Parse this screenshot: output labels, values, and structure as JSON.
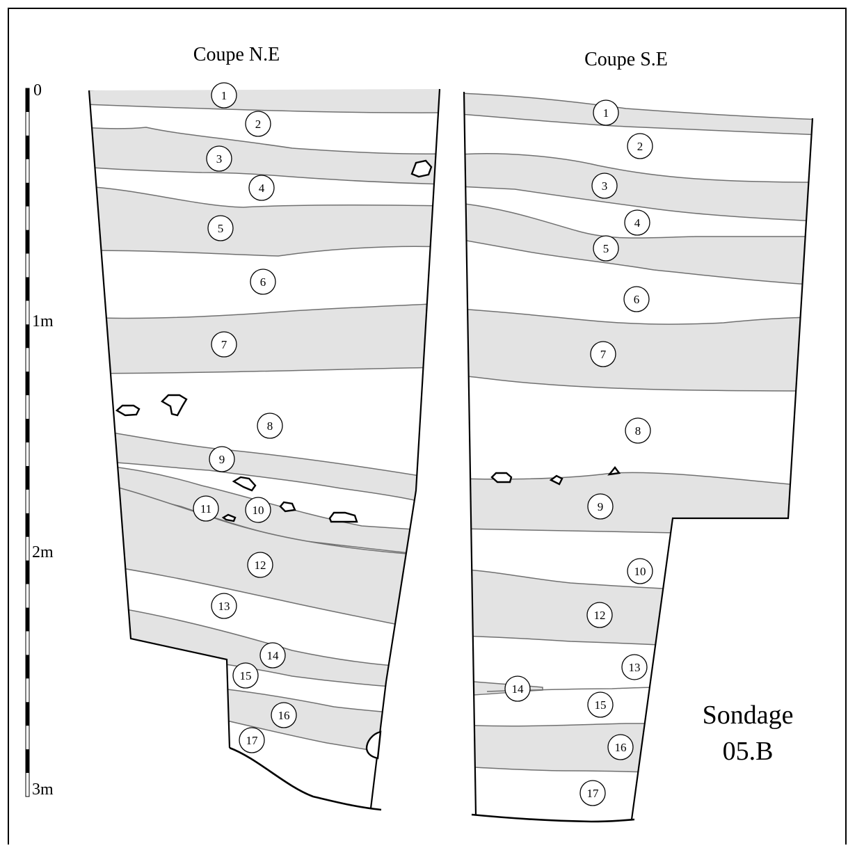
{
  "sections": [
    {
      "title": "Coupe N.E",
      "layers": [
        "1",
        "2",
        "3",
        "4",
        "5",
        "6",
        "7",
        "8",
        "9",
        "10",
        "11",
        "12",
        "13",
        "14",
        "15",
        "16",
        "17"
      ]
    },
    {
      "title": "Coupe S.E",
      "layers": [
        "1",
        "2",
        "3",
        "4",
        "5",
        "6",
        "7",
        "8",
        "9",
        "10",
        "12",
        "13",
        "14",
        "15",
        "16",
        "17"
      ]
    }
  ],
  "scale": {
    "labels": [
      "0",
      "1m",
      "2m",
      "3m"
    ]
  },
  "caption": {
    "line1": "Sondage",
    "line2": "05.B"
  },
  "colors": {
    "layer_fill": "#e3e3e3",
    "line": "#000000",
    "boundary": "#707070"
  }
}
